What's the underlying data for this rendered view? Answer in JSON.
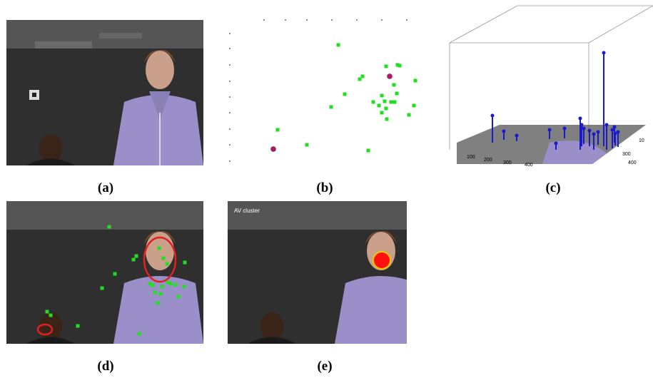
{
  "captions": {
    "a": "(a)",
    "b": "(b)",
    "c": "(c)",
    "d": "(d)",
    "e": "(e)"
  },
  "panel_e_label": "AV cluster",
  "colors": {
    "video_points": "#22dd22",
    "audio_points": "#c0106a",
    "stems": "#1a1acc",
    "ellipse": "#e02020",
    "fused": "#ff1111",
    "fused_ring": "#e8c800"
  },
  "chart_data": [
    {
      "type": "scatter",
      "panel": "b",
      "series": [
        {
          "marker": "green-square",
          "points": [
            [
              474,
              63
            ],
            [
              557,
              91
            ],
            [
              560,
              92
            ],
            [
              541,
              93
            ],
            [
              508,
              107
            ],
            [
              504,
              111
            ],
            [
              582,
              113
            ],
            [
              552,
              119
            ],
            [
              483,
              132
            ],
            [
              556,
              131
            ],
            [
              535,
              134
            ],
            [
              464,
              150
            ],
            [
              523,
              143
            ],
            [
              539,
              142
            ],
            [
              548,
              143
            ],
            [
              553,
              143
            ],
            [
              531,
              148
            ],
            [
              541,
              152
            ],
            [
              580,
              148
            ],
            [
              573,
              161
            ],
            [
              535,
              158
            ],
            [
              542,
              167
            ],
            [
              389,
              182
            ],
            [
              430,
              203
            ],
            [
              516,
              211
            ]
          ]
        },
        {
          "marker": "magenta-circle",
          "points": [
            [
              546,
              107
            ],
            [
              383,
              209
            ]
          ]
        }
      ]
    },
    {
      "type": "bar",
      "panel": "c",
      "x_ticks": [
        "100",
        "200",
        "300",
        "400"
      ],
      "y_ticks": [
        "300",
        "400"
      ],
      "z_ticks": [
        "10"
      ]
    }
  ]
}
